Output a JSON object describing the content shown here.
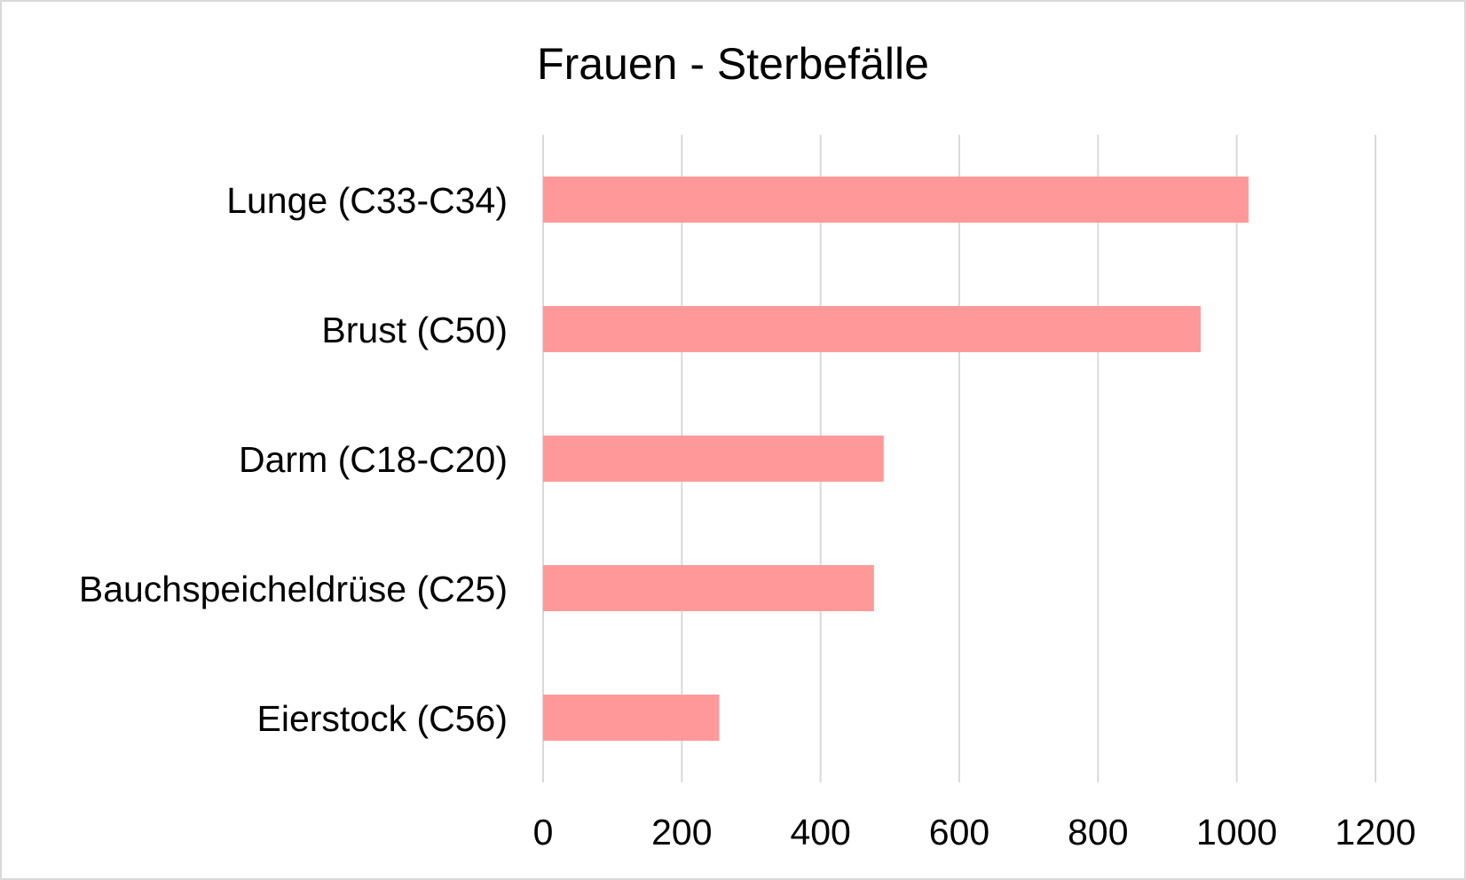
{
  "chart_data": {
    "type": "bar",
    "orientation": "horizontal",
    "title": "Frauen - Sterbefälle",
    "categories": [
      "Lunge (C33-C34)",
      "Brust (C50)",
      "Darm (C18-C20)",
      "Bauchspeicheldrüse (C25)",
      "Eierstock (C56)"
    ],
    "values": [
      1017,
      948,
      491,
      477,
      254
    ],
    "xlim": [
      0,
      1200
    ],
    "xticks": [
      "0",
      "200",
      "400",
      "600",
      "800",
      "1000",
      "1200"
    ],
    "xlabel": "",
    "ylabel": "",
    "grid": "vertical",
    "legend": "none",
    "bar_color": "#ff9999",
    "grid_color": "#d9d9d9"
  }
}
